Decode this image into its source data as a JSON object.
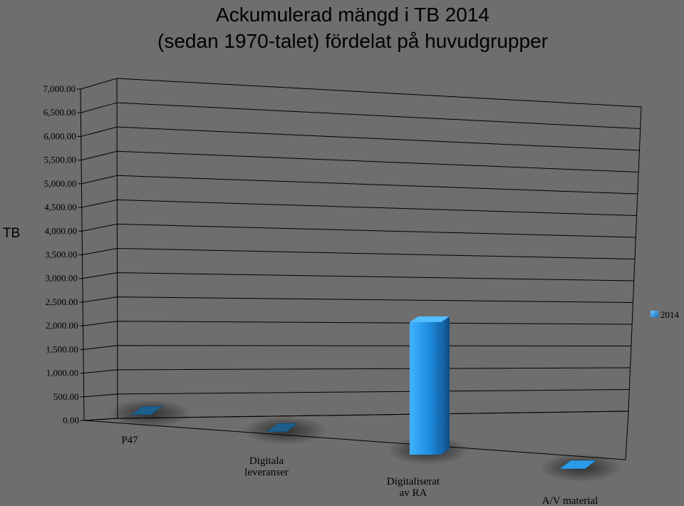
{
  "chart_data": {
    "type": "bar",
    "title_line1": "Ackumulerad mängd i TB 2014",
    "title_line2": "(sedan 1970-talet) fördelat på huvudgrupper",
    "ylabel": "TB",
    "y_ticks": [
      "0.00",
      "500.00",
      "1,000.00",
      "1,500.00",
      "2,000.00",
      "2,500.00",
      "3,000.00",
      "3,500.00",
      "4,000.00",
      "4,500.00",
      "5,000.00",
      "5,500.00",
      "6,000.00",
      "6,500.00",
      "7,000.00"
    ],
    "ylim": [
      0,
      7000
    ],
    "categories": [
      [
        "P47"
      ],
      [
        "Digitala",
        "leveranser"
      ],
      [
        "Digitaliserat",
        "av RA"
      ],
      [
        "A/V material"
      ]
    ],
    "series": [
      {
        "name": "2014",
        "values": [
          1,
          1,
          2000,
          20
        ]
      }
    ],
    "legend_position": "right",
    "grid": true,
    "style": "3d",
    "bar_color": "#1e90e8"
  }
}
